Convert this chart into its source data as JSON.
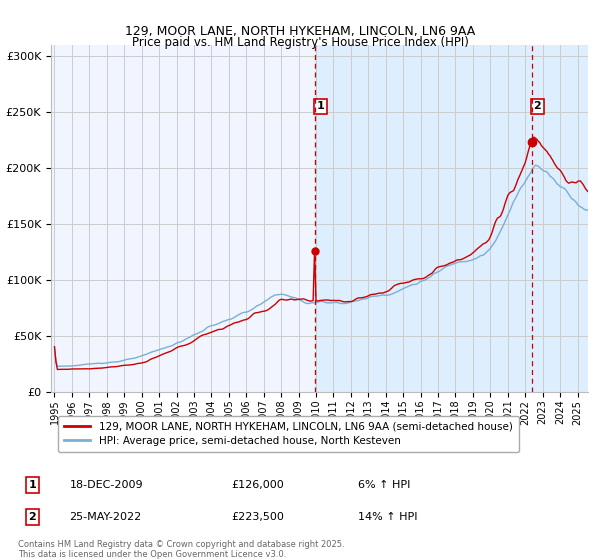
{
  "title1": "129, MOOR LANE, NORTH HYKEHAM, LINCOLN, LN6 9AA",
  "title2": "Price paid vs. HM Land Registry's House Price Index (HPI)",
  "legend1": "129, MOOR LANE, NORTH HYKEHAM, LINCOLN, LN6 9AA (semi-detached house)",
  "legend2": "HPI: Average price, semi-detached house, North Kesteven",
  "transaction1_label": "1",
  "transaction1_date": "18-DEC-2009",
  "transaction1_price": "£126,000",
  "transaction1_hpi": "6% ↑ HPI",
  "transaction2_label": "2",
  "transaction2_date": "25-MAY-2022",
  "transaction2_price": "£223,500",
  "transaction2_hpi": "14% ↑ HPI",
  "footer": "Contains HM Land Registry data © Crown copyright and database right 2025.\nThis data is licensed under the Open Government Licence v3.0.",
  "line_color_property": "#cc0000",
  "line_color_hpi": "#7bafd4",
  "shade_color": "#ddeeff",
  "dashed_line_color": "#cc0000",
  "grid_color": "#cccccc",
  "background_color": "#ffffff",
  "plot_bg_color": "#f0f5ff",
  "ylim": [
    0,
    310000
  ],
  "yticks": [
    0,
    50000,
    100000,
    150000,
    200000,
    250000,
    300000
  ],
  "ytick_labels": [
    "£0",
    "£50K",
    "£100K",
    "£150K",
    "£200K",
    "£250K",
    "£300K"
  ],
  "transaction1_x": 2009.96,
  "transaction2_x": 2022.39,
  "xmin": 1994.8,
  "xmax": 2025.6
}
